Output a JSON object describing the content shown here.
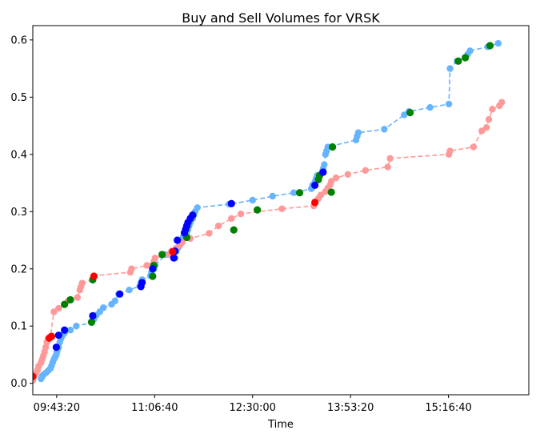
{
  "chart_data": {
    "type": "line",
    "title": "Buy and Sell Volumes for VRSK",
    "xlabel": "Time",
    "ylabel": "",
    "x_unit": "time of day",
    "xlim": [
      "09:23:00",
      "16:25:00"
    ],
    "ylim": [
      -0.02,
      0.625
    ],
    "x_ticks": [
      "09:43:20",
      "11:06:40",
      "12:30:00",
      "13:53:20",
      "15:16:40"
    ],
    "y_ticks": [
      0.0,
      0.1,
      0.2,
      0.3,
      0.4,
      0.5,
      0.6
    ],
    "grid": false,
    "legend": "none",
    "colors": {
      "buy_line": "#66b3ff",
      "sell_line": "#ff9999",
      "green_marker": "#008000",
      "blue_marker": "#0000ff",
      "red_marker": "#ff0000"
    },
    "series": [
      {
        "color": "#66b3ff",
        "linestyle": "dashed",
        "points": [
          [
            "09:30:00",
            0.008
          ],
          [
            "09:31:00",
            0.012
          ],
          [
            "09:32:00",
            0.015
          ],
          [
            "09:34:00",
            0.018
          ],
          [
            "09:36:00",
            0.022
          ],
          [
            "09:38:00",
            0.026
          ],
          [
            "09:39:00",
            0.031
          ],
          [
            "09:40:00",
            0.037
          ],
          [
            "09:41:00",
            0.042
          ],
          [
            "09:42:00",
            0.046
          ],
          [
            "09:43:00",
            0.05
          ],
          [
            "09:43:30",
            0.055
          ],
          [
            "09:44:00",
            0.059
          ],
          [
            "09:45:00",
            0.063
          ],
          [
            "09:46:00",
            0.072
          ],
          [
            "09:47:00",
            0.078
          ],
          [
            "09:48:00",
            0.083
          ],
          [
            "09:50:00",
            0.088
          ],
          [
            "09:55:00",
            0.093
          ],
          [
            "10:00:00",
            0.1
          ],
          [
            "10:13:00",
            0.106
          ],
          [
            "10:15:00",
            0.112
          ],
          [
            "10:17:00",
            0.119
          ],
          [
            "10:20:00",
            0.125
          ],
          [
            "10:23:00",
            0.132
          ],
          [
            "10:30:00",
            0.138
          ],
          [
            "10:33:00",
            0.144
          ],
          [
            "10:36:00",
            0.156
          ],
          [
            "10:45:00",
            0.163
          ],
          [
            "10:54:00",
            0.17
          ],
          [
            "10:55:00",
            0.176
          ],
          [
            "10:56:00",
            0.181
          ],
          [
            "11:03:00",
            0.188
          ],
          [
            "11:04:00",
            0.194
          ],
          [
            "11:06:00",
            0.2
          ],
          [
            "11:07:00",
            0.206
          ],
          [
            "11:16:00",
            0.225
          ],
          [
            "11:24:00",
            0.219
          ],
          [
            "11:25:00",
            0.231
          ],
          [
            "11:27:00",
            0.238
          ],
          [
            "11:29:00",
            0.244
          ],
          [
            "11:30:00",
            0.25
          ],
          [
            "11:31:00",
            0.256
          ],
          [
            "11:34:00",
            0.263
          ],
          [
            "11:35:00",
            0.269
          ],
          [
            "11:36:00",
            0.275
          ],
          [
            "11:37:00",
            0.281
          ],
          [
            "11:39:00",
            0.288
          ],
          [
            "11:40:00",
            0.294
          ],
          [
            "11:41:00",
            0.3
          ],
          [
            "11:43:00",
            0.307
          ],
          [
            "12:10:00",
            0.313
          ],
          [
            "12:30:00",
            0.32
          ],
          [
            "12:47:00",
            0.327
          ],
          [
            "13:05:00",
            0.333
          ],
          [
            "13:20:00",
            0.34
          ],
          [
            "13:21:00",
            0.346
          ],
          [
            "13:23:00",
            0.352
          ],
          [
            "13:24:00",
            0.358
          ],
          [
            "13:25:00",
            0.363
          ],
          [
            "13:29:00",
            0.369
          ],
          [
            "13:30:00",
            0.375
          ],
          [
            "13:31:00",
            0.382
          ],
          [
            "13:32:00",
            0.4
          ],
          [
            "13:33:00",
            0.406
          ],
          [
            "13:34:00",
            0.413
          ],
          [
            "13:58:00",
            0.425
          ],
          [
            "13:59:00",
            0.432
          ],
          [
            "14:00:00",
            0.438
          ],
          [
            "14:22:00",
            0.444
          ],
          [
            "14:39:00",
            0.469
          ],
          [
            "14:43:00",
            0.475
          ],
          [
            "15:01:00",
            0.482
          ],
          [
            "15:17:00",
            0.488
          ],
          [
            "15:18:00",
            0.55
          ],
          [
            "15:24:00",
            0.563
          ],
          [
            "15:31:00",
            0.569
          ],
          [
            "15:33:00",
            0.575
          ],
          [
            "15:35:00",
            0.581
          ],
          [
            "15:50:00",
            0.588
          ],
          [
            "15:59:00",
            0.594
          ]
        ]
      },
      {
        "color": "#ff9999",
        "linestyle": "dashed",
        "points": [
          [
            "09:23:00",
            0.005
          ],
          [
            "09:24:00",
            0.012
          ],
          [
            "09:26:00",
            0.018
          ],
          [
            "09:27:00",
            0.023
          ],
          [
            "09:28:00",
            0.03
          ],
          [
            "09:30:00",
            0.036
          ],
          [
            "09:31:00",
            0.042
          ],
          [
            "09:32:00",
            0.048
          ],
          [
            "09:33:00",
            0.055
          ],
          [
            "09:34:00",
            0.063
          ],
          [
            "09:35:00",
            0.072
          ],
          [
            "09:36:00",
            0.078
          ],
          [
            "09:38:00",
            0.082
          ],
          [
            "09:41:00",
            0.125
          ],
          [
            "09:45:00",
            0.131
          ],
          [
            "09:53:00",
            0.144
          ],
          [
            "10:01:00",
            0.15
          ],
          [
            "10:03:00",
            0.163
          ],
          [
            "10:04:00",
            0.169
          ],
          [
            "10:05:00",
            0.175
          ],
          [
            "10:14:00",
            0.181
          ],
          [
            "10:15:00",
            0.188
          ],
          [
            "10:46:00",
            0.194
          ],
          [
            "10:47:00",
            0.2
          ],
          [
            "11:00:00",
            0.206
          ],
          [
            "11:06:00",
            0.213
          ],
          [
            "11:07:00",
            0.219
          ],
          [
            "11:19:00",
            0.225
          ],
          [
            "11:21:00",
            0.231
          ],
          [
            "11:25:00",
            0.236
          ],
          [
            "11:28:00",
            0.241
          ],
          [
            "11:30:00",
            0.246
          ],
          [
            "11:37:00",
            0.253
          ],
          [
            "11:53:00",
            0.262
          ],
          [
            "12:01:00",
            0.275
          ],
          [
            "12:12:00",
            0.288
          ],
          [
            "12:20:00",
            0.296
          ],
          [
            "12:55:00",
            0.305
          ],
          [
            "13:22:00",
            0.31
          ],
          [
            "13:23:00",
            0.317
          ],
          [
            "13:26:00",
            0.323
          ],
          [
            "13:28:00",
            0.329
          ],
          [
            "13:32:00",
            0.335
          ],
          [
            "13:34:00",
            0.341
          ],
          [
            "13:36:00",
            0.347
          ],
          [
            "13:37:00",
            0.353
          ],
          [
            "13:41:00",
            0.359
          ],
          [
            "13:51:00",
            0.365
          ],
          [
            "14:06:00",
            0.372
          ],
          [
            "14:25:00",
            0.378
          ],
          [
            "14:27:00",
            0.393
          ],
          [
            "15:17:00",
            0.4
          ],
          [
            "15:18:00",
            0.406
          ],
          [
            "15:38:00",
            0.413
          ],
          [
            "15:45:00",
            0.441
          ],
          [
            "15:49:00",
            0.447
          ],
          [
            "15:51:00",
            0.461
          ],
          [
            "15:54:00",
            0.479
          ],
          [
            "16:00:00",
            0.485
          ],
          [
            "16:02:00",
            0.491
          ]
        ]
      }
    ],
    "markers": {
      "green": [
        [
          "09:50:00",
          0.138
        ],
        [
          "09:55:00",
          0.146
        ],
        [
          "10:13:00",
          0.107
        ],
        [
          "10:14:00",
          0.181
        ],
        [
          "11:05:00",
          0.187
        ],
        [
          "11:06:00",
          0.206
        ],
        [
          "11:13:00",
          0.225
        ],
        [
          "11:34:00",
          0.255
        ],
        [
          "12:14:00",
          0.268
        ],
        [
          "12:34:00",
          0.303
        ],
        [
          "13:10:00",
          0.333
        ],
        [
          "13:26:00",
          0.356
        ],
        [
          "13:27:00",
          0.363
        ],
        [
          "13:37:00",
          0.334
        ],
        [
          "13:38:00",
          0.413
        ],
        [
          "14:44:00",
          0.473
        ],
        [
          "15:25:00",
          0.563
        ],
        [
          "15:31:00",
          0.569
        ],
        [
          "15:52:00",
          0.59
        ]
      ],
      "blue": [
        [
          "09:43:00",
          0.063
        ],
        [
          "09:45:00",
          0.084
        ],
        [
          "09:50:00",
          0.093
        ],
        [
          "10:14:00",
          0.118
        ],
        [
          "10:37:00",
          0.156
        ],
        [
          "10:55:00",
          0.169
        ],
        [
          "10:56:00",
          0.176
        ],
        [
          "11:05:00",
          0.2
        ],
        [
          "11:23:00",
          0.219
        ],
        [
          "11:24:00",
          0.231
        ],
        [
          "11:26:00",
          0.25
        ],
        [
          "11:32:00",
          0.263
        ],
        [
          "11:33:00",
          0.269
        ],
        [
          "11:34:00",
          0.275
        ],
        [
          "11:35:00",
          0.281
        ],
        [
          "11:37:00",
          0.288
        ],
        [
          "11:39:00",
          0.294
        ],
        [
          "12:12:00",
          0.314
        ],
        [
          "13:23:00",
          0.346
        ],
        [
          "13:30:00",
          0.369
        ]
      ],
      "red": [
        [
          "09:23:00",
          0.012
        ],
        [
          "09:37:00",
          0.079
        ],
        [
          "09:39:00",
          0.082
        ],
        [
          "10:15:00",
          0.187
        ],
        [
          "11:22:00",
          0.23
        ],
        [
          "13:23:00",
          0.316
        ]
      ]
    }
  }
}
